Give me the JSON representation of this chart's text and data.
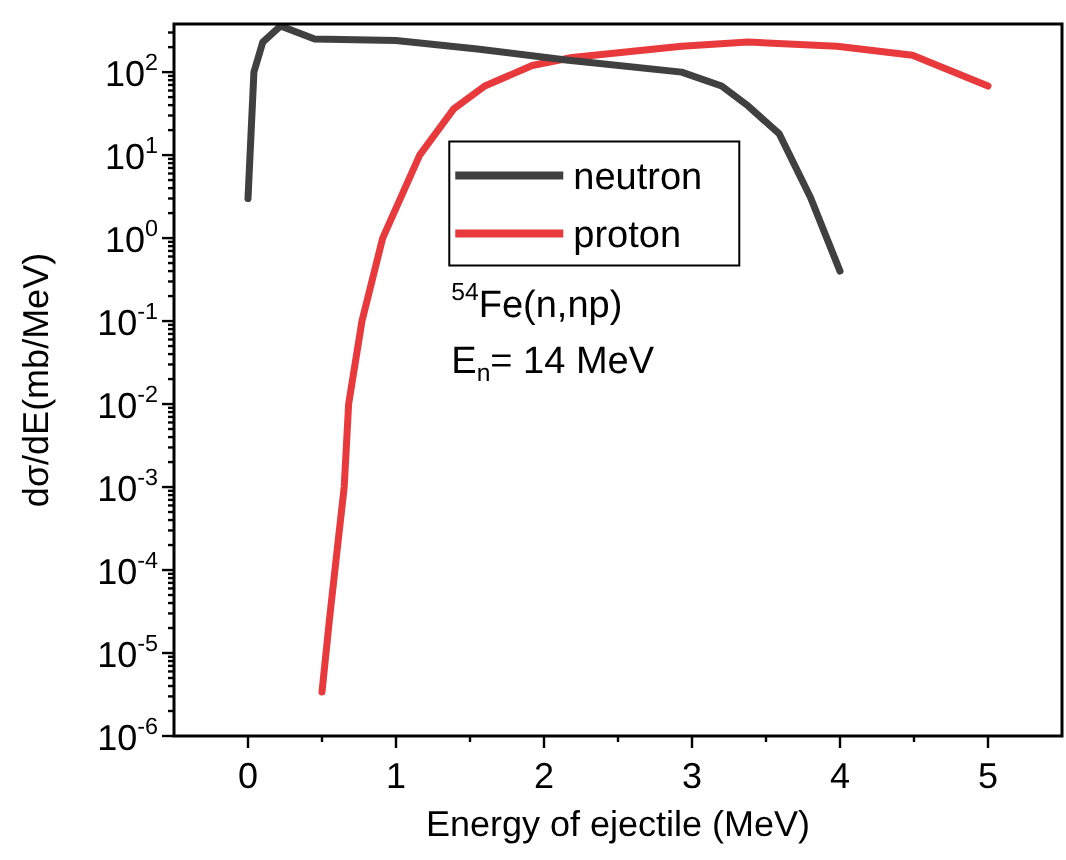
{
  "chart_data": {
    "type": "line",
    "xlabel": "Energy of ejectile (MeV)",
    "ylabel": "dσ/dE(mb/MeV)",
    "log": "y",
    "legend": "center",
    "grid": false,
    "line_style": "solid",
    "marker": "none",
    "xlim": [
      -0.5,
      5.5
    ],
    "xticks": [
      0,
      1,
      2,
      3,
      4,
      5
    ],
    "ylim": [
      1e-06,
      380
    ],
    "yticks": [
      {
        "value": 1e-06,
        "label": "10$^{-6}$"
      },
      {
        "value": 1e-05,
        "label": "10$^{-5}$"
      },
      {
        "value": 0.0001,
        "label": "10$^{-4}$"
      },
      {
        "value": 0.001,
        "label": "10$^{-3}$"
      },
      {
        "value": 0.01,
        "label": "10$^{-2}$"
      },
      {
        "value": 0.1,
        "label": "10$^{-1}$"
      },
      {
        "value": 1,
        "label": "10$^{0}$"
      },
      {
        "value": 10,
        "label": "10$^{1}$"
      },
      {
        "value": 100,
        "label": "10$^{2}$"
      }
    ],
    "annotations": [
      "$^{54}$Fe(n,np)",
      "E$_{n}$= 14 MeV"
    ],
    "series": [
      {
        "name": "neutron",
        "color": "#404040",
        "x": [
          0,
          0.04,
          0.1,
          0.22,
          0.45,
          1.0,
          1.55,
          2.15,
          2.93,
          3.2,
          3.38,
          3.59,
          3.8,
          4.0
        ],
        "values": [
          3,
          100,
          230,
          360,
          250,
          240,
          190,
          140,
          100,
          68,
          39,
          18,
          3.1,
          0.4
        ]
      },
      {
        "name": "proton",
        "color": "#e8393c",
        "x": [
          0.5,
          0.55,
          0.6,
          0.65,
          0.68,
          0.77,
          0.91,
          1.16,
          1.39,
          1.6,
          1.92,
          2.19,
          2.93,
          3.38,
          3.98,
          4.49,
          5.0
        ],
        "values": [
          3.4e-06,
          2.5e-05,
          0.00016,
          0.001,
          0.01,
          0.1,
          1,
          10,
          36,
          68,
          120,
          150,
          205,
          230,
          205,
          160,
          68
        ]
      }
    ]
  }
}
